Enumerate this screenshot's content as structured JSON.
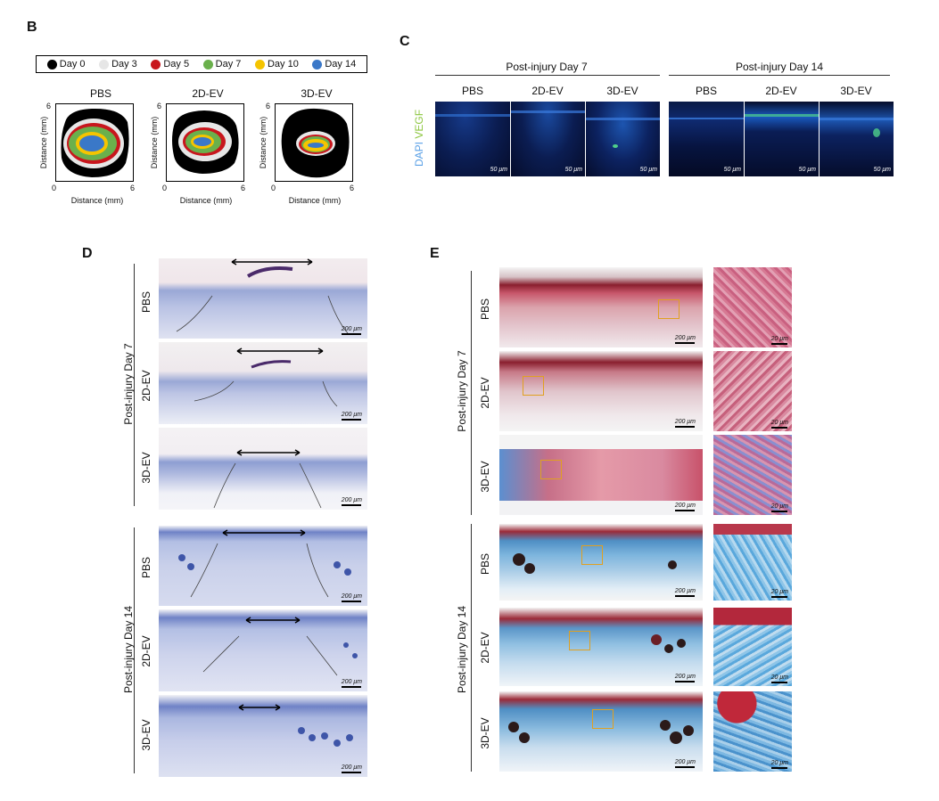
{
  "panel_b": {
    "label": "B",
    "legend": [
      {
        "label": "Day 0",
        "color": "#000000"
      },
      {
        "label": "Day 3",
        "color": "#e6e6e6"
      },
      {
        "label": "Day 5",
        "color": "#c8161d"
      },
      {
        "label": "Day 7",
        "color": "#6ab04c"
      },
      {
        "label": "Day 10",
        "color": "#f5c400"
      },
      {
        "label": "Day 14",
        "color": "#3a78c8"
      }
    ],
    "plots": [
      {
        "title": "PBS"
      },
      {
        "title": "2D-EV"
      },
      {
        "title": "3D-EV"
      }
    ],
    "axis": {
      "ylabel": "Distance (mm)",
      "xlabel": "Distance (mm)",
      "min": "0",
      "max": "6"
    }
  },
  "panel_c": {
    "label": "C",
    "groups": [
      "Post-injury Day 7",
      "Post-injury Day 14"
    ],
    "columns": [
      "PBS",
      "2D-EV",
      "3D-EV",
      "PBS",
      "2D-EV",
      "3D-EV"
    ],
    "stain_dapi": "DAPI",
    "stain_vegf": "VEGF",
    "scale": "50 μm"
  },
  "panel_d": {
    "label": "D",
    "groups": [
      "Post-injury Day 7",
      "Post-injury Day 14"
    ],
    "rows": [
      "PBS",
      "2D-EV",
      "3D-EV",
      "PBS",
      "2D-EV",
      "3D-EV"
    ],
    "scale": "200 μm"
  },
  "panel_e": {
    "label": "E",
    "groups": [
      "Post-injury Day 7",
      "Post-injury Day 14"
    ],
    "rows": [
      "PBS",
      "2D-EV",
      "3D-EV",
      "PBS",
      "2D-EV",
      "3D-EV"
    ],
    "scale_main": "200 μm",
    "scale_zoom": "20 μm"
  }
}
